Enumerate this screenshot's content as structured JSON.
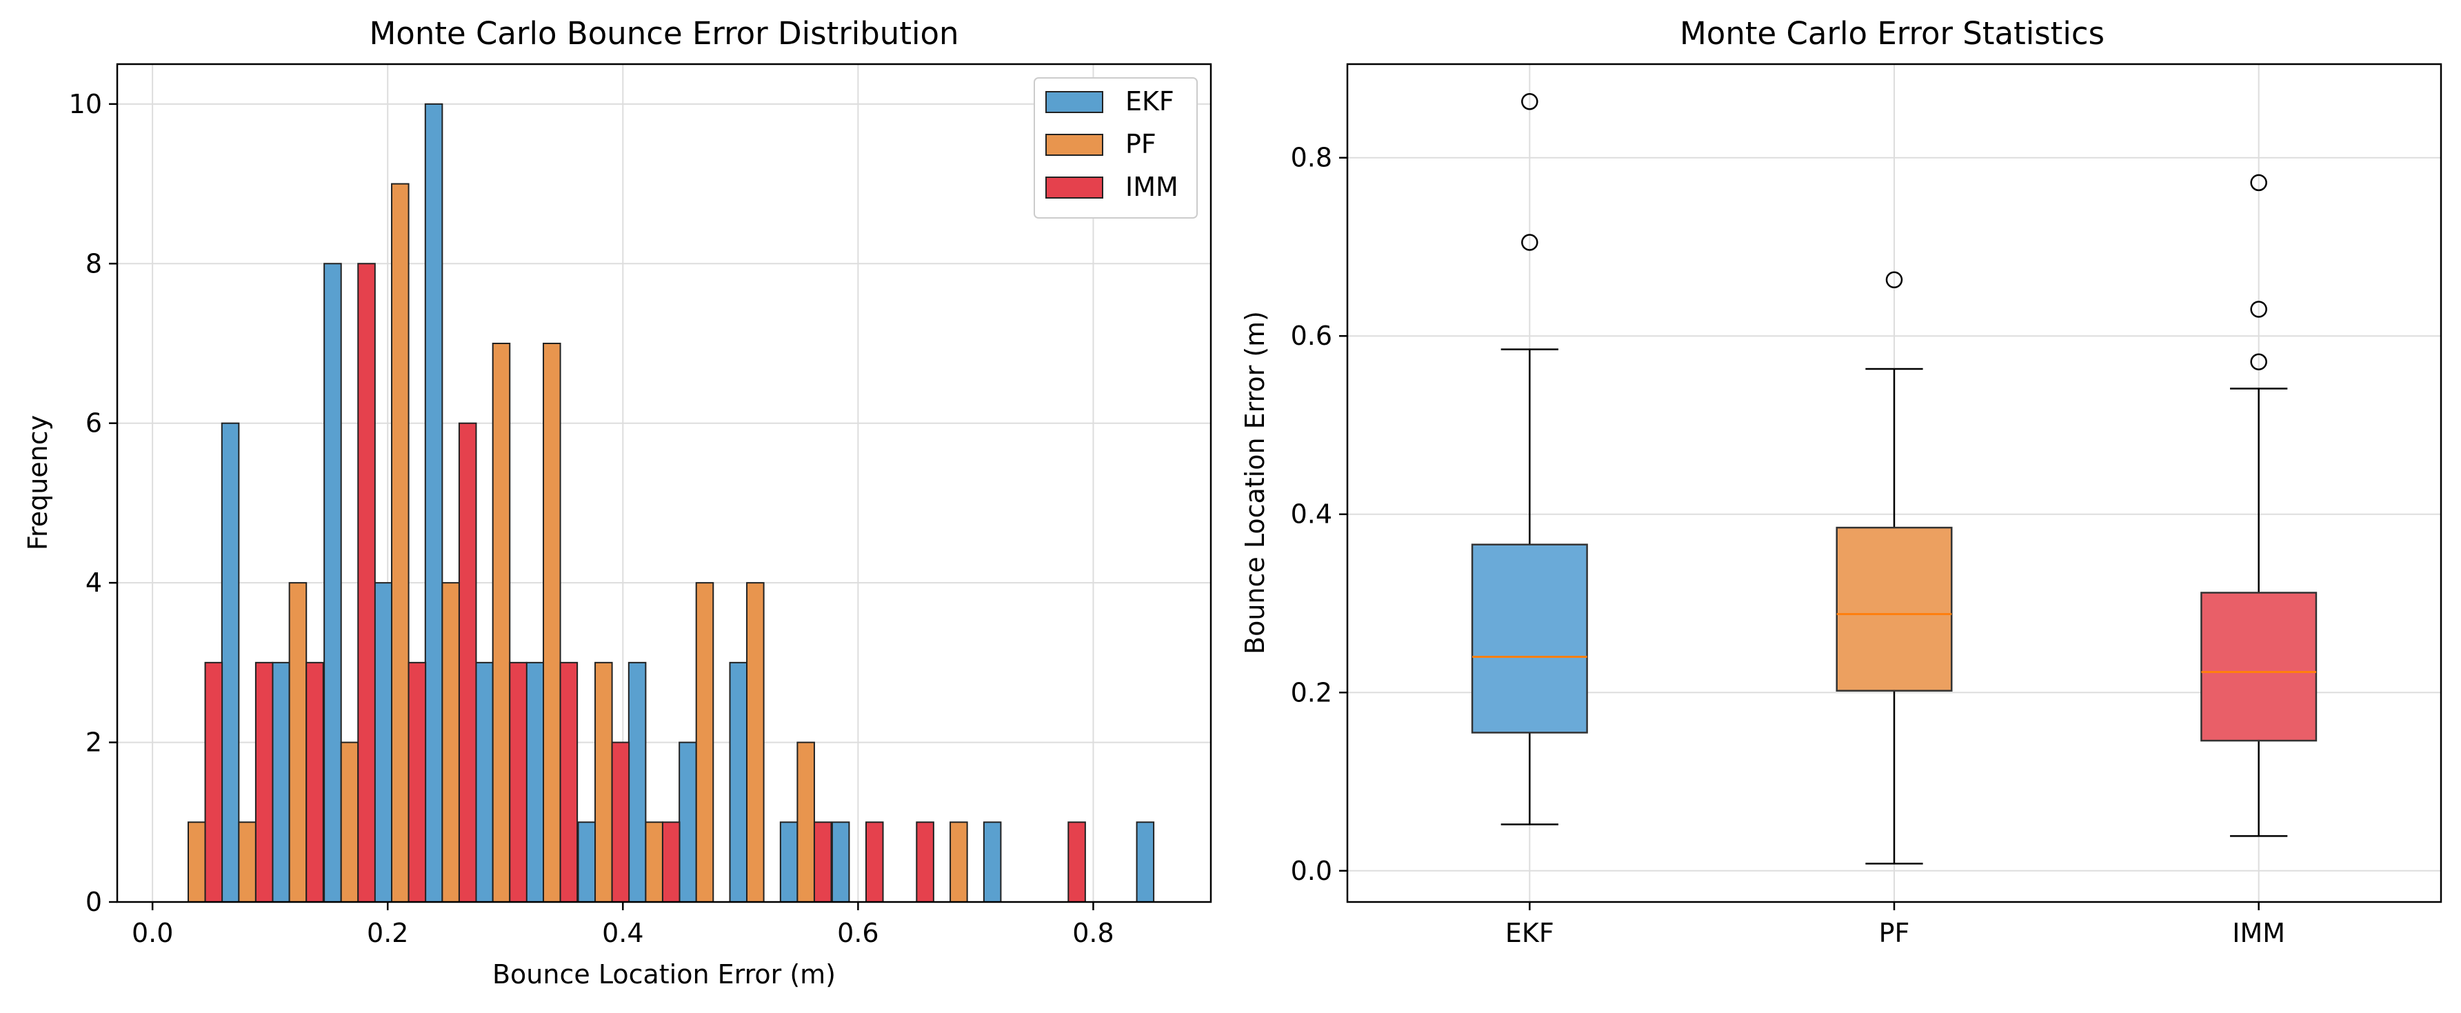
{
  "chart_data": [
    {
      "type": "bar",
      "title": "Monte Carlo Bounce Error Distribution",
      "xlabel": "Bounce Location Error (m)",
      "ylabel": "Frequency",
      "xlim": [
        -0.03,
        0.9
      ],
      "ylim": [
        0,
        10.5
      ],
      "xticks": [
        "0.0",
        "0.2",
        "0.4",
        "0.6",
        "0.8"
      ],
      "xtick_values": [
        0.0,
        0.2,
        0.4,
        0.6,
        0.8
      ],
      "yticks": [
        "0",
        "2",
        "4",
        "6",
        "8",
        "10"
      ],
      "ytick_values": [
        0,
        2,
        4,
        6,
        8,
        10
      ],
      "grid": true,
      "legend_position": "top-right",
      "bin_width": 0.0432,
      "bin_starts": [
        0.016,
        0.059,
        0.102,
        0.146,
        0.189,
        0.232,
        0.275,
        0.318,
        0.362,
        0.405,
        0.448,
        0.491,
        0.534,
        0.578,
        0.621,
        0.664,
        0.707,
        0.75,
        0.794,
        0.837
      ],
      "series": [
        {
          "name": "EKF",
          "color": "#5aa0cf",
          "values": [
            0,
            6,
            3,
            8,
            4,
            10,
            3,
            3,
            1,
            3,
            2,
            3,
            1,
            1,
            0,
            0,
            1,
            0,
            0,
            1
          ]
        },
        {
          "name": "PF",
          "color": "#e8954e",
          "values": [
            1,
            1,
            4,
            2,
            9,
            4,
            7,
            7,
            3,
            1,
            4,
            4,
            2,
            0,
            0,
            1,
            0,
            0,
            0,
            0
          ]
        },
        {
          "name": "IMM",
          "color": "#e5414d",
          "values": [
            3,
            3,
            3,
            8,
            3,
            6,
            3,
            3,
            2,
            1,
            0,
            0,
            1,
            1,
            1,
            0,
            0,
            1,
            0,
            0
          ]
        }
      ]
    },
    {
      "type": "box",
      "title": "Monte Carlo Error Statistics",
      "ylabel": "Bounce Location Error (m)",
      "ylim": [
        -0.035,
        0.905
      ],
      "yticks": [
        "0.0",
        "0.2",
        "0.4",
        "0.6",
        "0.8"
      ],
      "ytick_values": [
        0.0,
        0.2,
        0.4,
        0.6,
        0.8
      ],
      "grid": true,
      "categories": [
        "EKF",
        "PF",
        "IMM"
      ],
      "boxes": [
        {
          "name": "EKF",
          "color": "#6aaad8",
          "whisker_low": 0.052,
          "q1": 0.155,
          "median": 0.24,
          "q3": 0.366,
          "whisker_high": 0.585,
          "outliers": [
            0.705,
            0.863
          ]
        },
        {
          "name": "PF",
          "color": "#eca060",
          "whisker_low": 0.008,
          "q1": 0.202,
          "median": 0.288,
          "q3": 0.385,
          "whisker_high": 0.563,
          "outliers": [
            0.663
          ]
        },
        {
          "name": "IMM",
          "color": "#e95f68",
          "whisker_low": 0.039,
          "q1": 0.146,
          "median": 0.223,
          "q3": 0.312,
          "whisker_high": 0.541,
          "outliers": [
            0.571,
            0.63,
            0.772
          ]
        }
      ],
      "median_color": "#ff7f0e"
    }
  ]
}
